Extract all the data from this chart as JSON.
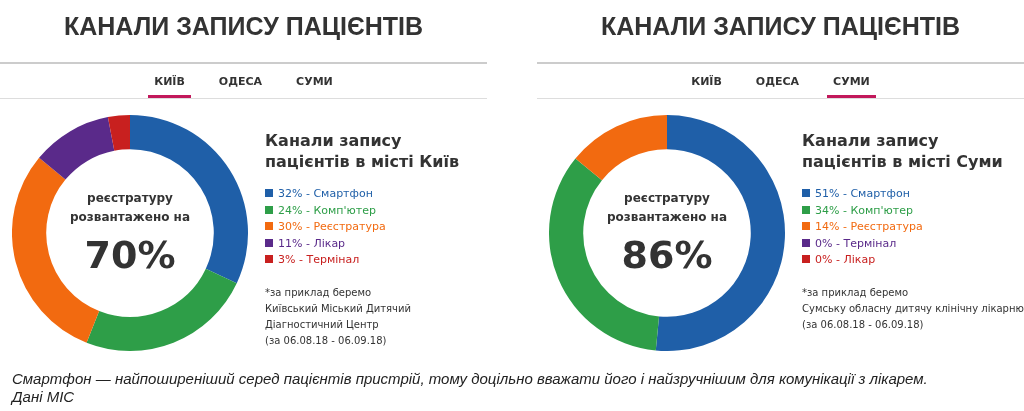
{
  "chart_data": [
    {
      "type": "donut",
      "title": "КАНАЛИ ЗАПИСУ ПАЦІЄНТІВ",
      "subtitle": "Канали запису пацієнтів в місті Київ",
      "categories": [
        "32% - Смартфон",
        "24% - Комп'ютер",
        "30% - Реєстратура",
        "11% - Лікар",
        "3% - Термінал"
      ],
      "values": [
        32,
        24,
        30,
        11,
        3
      ],
      "colors": [
        "#1f5fa8",
        "#2e9e48",
        "#f26a10",
        "#5a2a8a",
        "#c8201f"
      ],
      "legend": "right",
      "annotations": [
        "КИЇВ",
        "ОДЕСА",
        "СУМИ",
        "реєстратуру розвантажено на",
        "70%",
        "*за приклад беремо",
        "Київський Міський Дитячий Діагностичний Центр",
        "(за 06.08.18 - 06.09.18)"
      ]
    },
    {
      "type": "donut",
      "title": "КАНАЛИ ЗАПИСУ ПАЦІЄНТІВ",
      "subtitle": "Канали запису пацієнтів в місті Суми",
      "categories": [
        "51% - Смартфон",
        "34% - Комп'ютер",
        "14% - Реєстратура",
        "0% - Термінал",
        "0% - Лікар"
      ],
      "values": [
        51,
        34,
        14,
        0,
        0
      ],
      "colors": [
        "#1f5fa8",
        "#2e9e48",
        "#f26a10",
        "#5a2a8a",
        "#c8201f"
      ],
      "legend": "right",
      "annotations": [
        "КИЇВ",
        "ОДЕСА",
        "СУМИ",
        "реєстратуру розвантажено на",
        "86%",
        "*за приклад беремо",
        "Сумську обласну дитячу клінічну лікарню",
        "(за 06.08.18 - 06.09.18)"
      ]
    },
    {
      "type": "other",
      "annotations": [
        "Смартфон — найпоширеніший серед пацієнтів пристрій, тому доцільно вважати його і найзручнішим для комунікації з лікарем.",
        "Дані МІС"
      ]
    }
  ]
}
